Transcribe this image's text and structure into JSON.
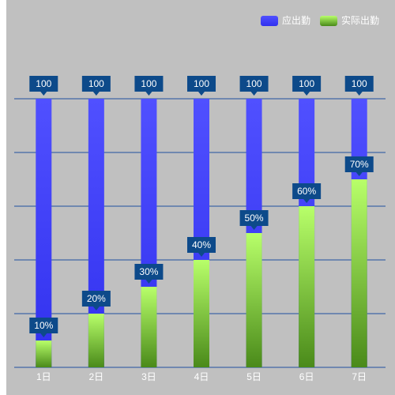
{
  "chart_data": {
    "type": "bar",
    "categories": [
      "1日",
      "2日",
      "3日",
      "4日",
      "5日",
      "6日",
      "7日"
    ],
    "series": [
      {
        "name": "应出勤",
        "color": "#5050ff",
        "color_end": "#3030ee",
        "values": [
          100,
          100,
          100,
          100,
          100,
          100,
          100
        ]
      },
      {
        "name": "实际出勤",
        "color": "#b8ff6a",
        "color_end": "#4a8a1a",
        "values": [
          10,
          20,
          30,
          40,
          50,
          60,
          70
        ],
        "value_labels": [
          "10%",
          "20%",
          "30%",
          "40%",
          "50%",
          "60%",
          "70%"
        ]
      }
    ],
    "ylim": [
      0,
      100
    ],
    "yticks": [
      0,
      20,
      40,
      60,
      80,
      100
    ],
    "grid": true,
    "legend": "top-right",
    "label_color": "#0d4a8a"
  }
}
